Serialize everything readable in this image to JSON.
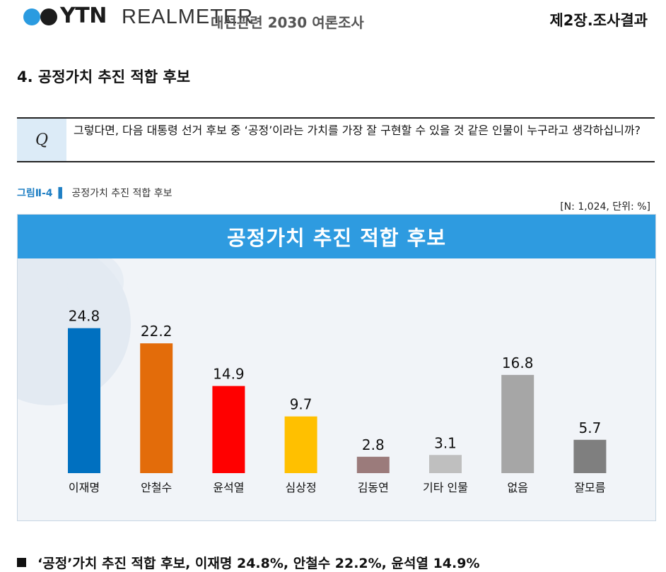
{
  "header": {
    "logo_text": "YTN",
    "partner_text": "REALMETER",
    "subtitle": "대선관련 2030 여론조사",
    "chapter": "제2장.조사결과"
  },
  "section": {
    "title": "4. 공정가치 추진 적합 후보"
  },
  "question": {
    "label": "Q",
    "text": "그렇다면, 다음 대통령 선거 후보 중 ‘공정’이라는 가치를 가장 잘 구현할 수 있을 것 같은 인물이 누구라고 생각하십니까?"
  },
  "figure": {
    "number": "그림Ⅱ-4",
    "marker": "▌",
    "caption": "공정가치 추진 적합 후보",
    "sample_note": "[N: 1,024, 단위: %]"
  },
  "colors": {
    "banner": "#2e9be0",
    "accent": "#1f7fc4"
  },
  "chart_data": {
    "type": "bar",
    "title": "공정가치 추진 적합 후보",
    "categories": [
      "이재명",
      "안철수",
      "윤석열",
      "심상정",
      "김동연",
      "기타 인물",
      "없음",
      "잘모름"
    ],
    "values": [
      24.8,
      22.2,
      14.9,
      9.7,
      2.8,
      3.1,
      16.8,
      5.7
    ],
    "value_labels": [
      "24.8",
      "22.2",
      "14.9",
      "9.7",
      "2.8",
      "3.1",
      "16.8",
      "5.7"
    ],
    "colors": [
      "#0070c0",
      "#e36c0a",
      "#ff0000",
      "#ffc000",
      "#9b7b7b",
      "#bfbfbf",
      "#a6a6a6",
      "#7f7f7f"
    ],
    "ylim": [
      0,
      25
    ],
    "xlabel": "",
    "ylabel": "",
    "unit": "%"
  },
  "summary": {
    "text": "‘공정’가치 추진 적합 후보, 이재명 24.8%, 안철수 22.2%, 윤석열 14.9%"
  }
}
